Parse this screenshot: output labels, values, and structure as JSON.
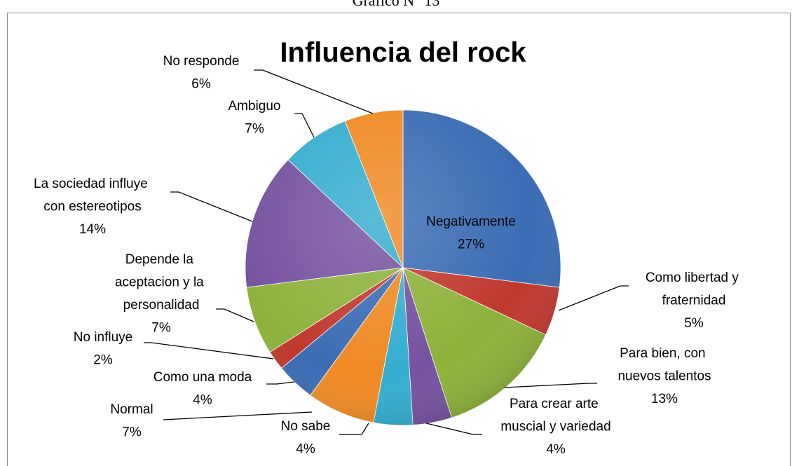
{
  "caption": "Gráfico N° 13",
  "chart_data": {
    "type": "pie",
    "title": "Influencia del rock",
    "categories": [
      "Negativamente",
      "Como libertad y fraternidad",
      "Para bien, con nuevos talentos",
      "Para crear arte muscial y variedad",
      "No sabe",
      "Normal",
      "Como una moda",
      "No influye",
      "Depende la aceptacion y la personalidad",
      "La sociedad influye con estereotipos",
      "Ambiguo",
      "No responde"
    ],
    "values": [
      27,
      5,
      13,
      4,
      4,
      7,
      4,
      2,
      7,
      14,
      7,
      6
    ],
    "value_labels": [
      "27%",
      "5%",
      "13%",
      "4%",
      "4%",
      "7%",
      "4%",
      "2%",
      "7%",
      "14%",
      "7%",
      "6%"
    ],
    "colors": [
      "#3b6cb4",
      "#c0392f",
      "#8db23a",
      "#7652a0",
      "#35add0",
      "#f08a25",
      "#3b6cb4",
      "#c0392f",
      "#8db23a",
      "#7652a0",
      "#35add0",
      "#f08a25"
    ]
  }
}
